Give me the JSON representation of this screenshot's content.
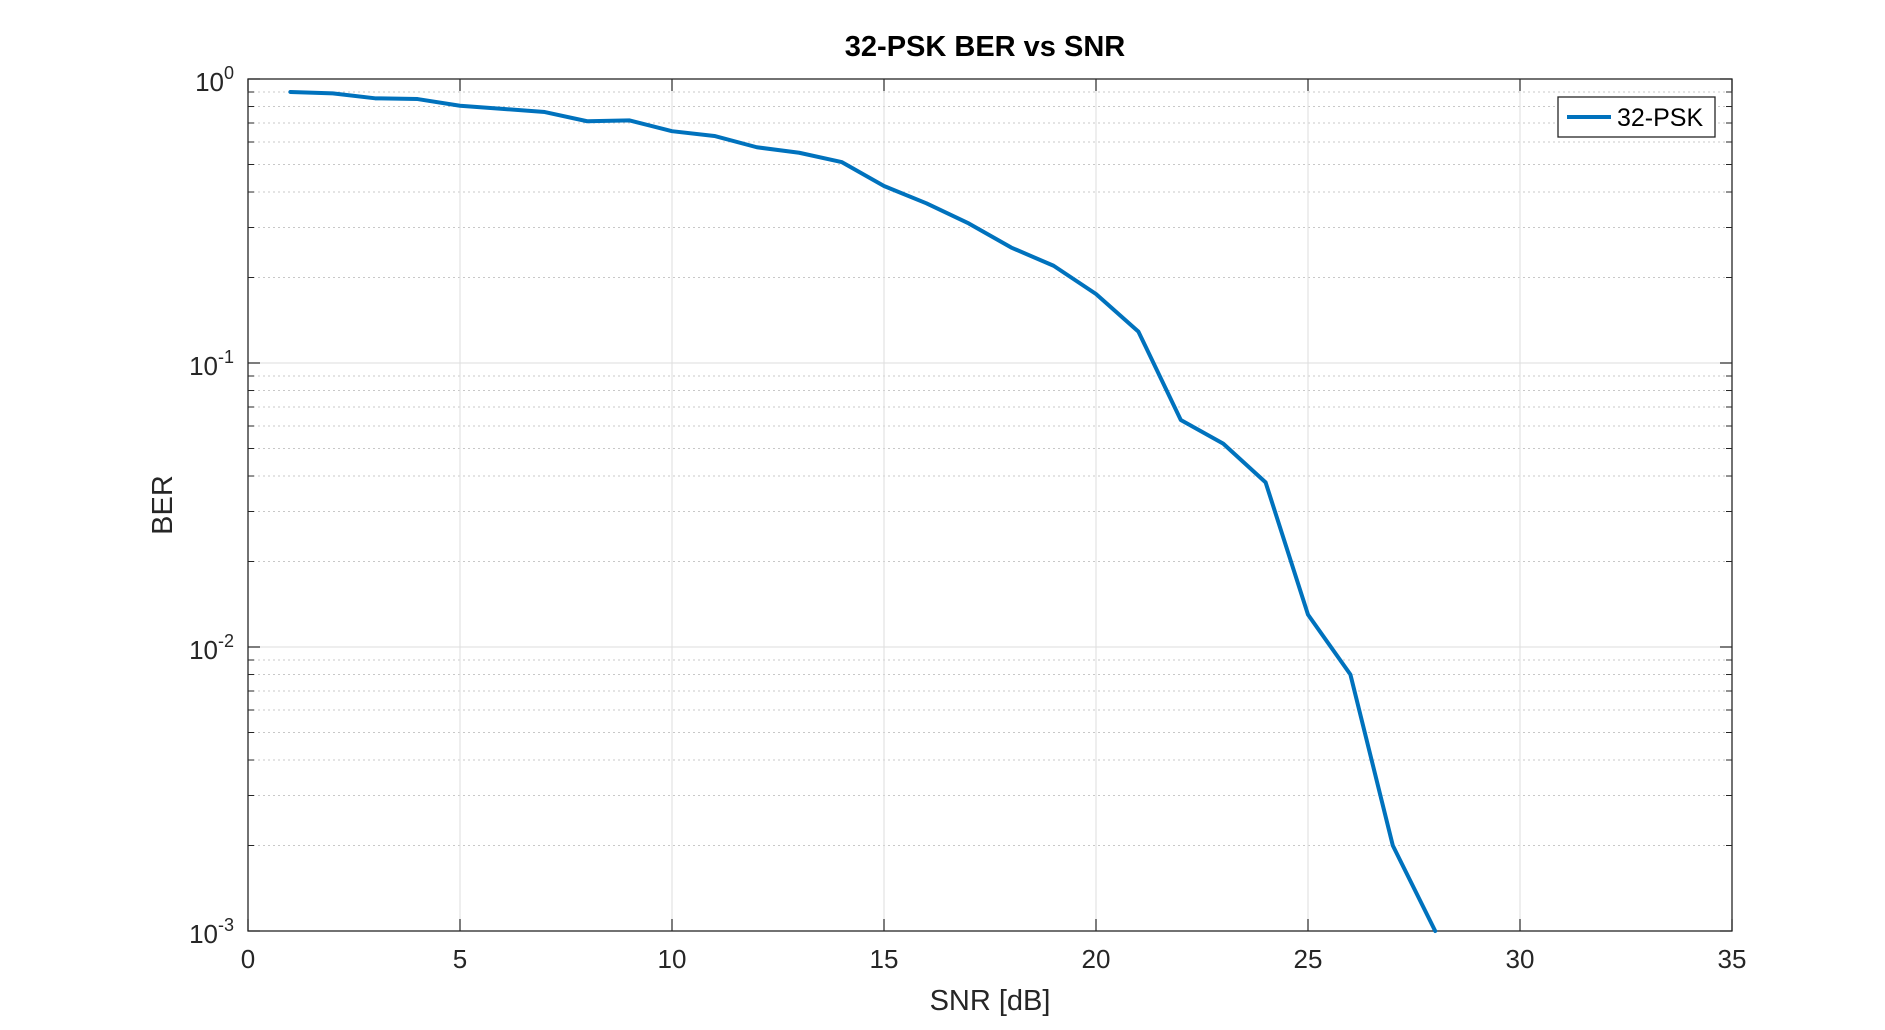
{
  "chart_data": {
    "type": "line",
    "title": "32-PSK BER vs SNR",
    "xlabel": "SNR [dB]",
    "ylabel": "BER",
    "xlim": [
      0,
      35
    ],
    "ylim": [
      0.001,
      1
    ],
    "yscale": "log",
    "grid": true,
    "legend_position": "top-right",
    "x_ticks": [
      "0",
      "5",
      "10",
      "15",
      "20",
      "25",
      "30",
      "35"
    ],
    "y_ticks": [
      {
        "base": "10",
        "exp": "0"
      },
      {
        "base": "10",
        "exp": "-1"
      },
      {
        "base": "10",
        "exp": "-2"
      },
      {
        "base": "10",
        "exp": "-3"
      }
    ],
    "series": [
      {
        "name": "32-PSK",
        "color": "#0072BD",
        "x": [
          1,
          2,
          3,
          4,
          5,
          6,
          7,
          8,
          9,
          10,
          11,
          12,
          13,
          14,
          15,
          16,
          17,
          18,
          19,
          20,
          21,
          22,
          23,
          24,
          25,
          26,
          27,
          28
        ],
        "y": [
          0.9,
          0.89,
          0.855,
          0.85,
          0.805,
          0.785,
          0.765,
          0.71,
          0.715,
          0.655,
          0.63,
          0.575,
          0.55,
          0.51,
          0.42,
          0.365,
          0.31,
          0.255,
          0.22,
          0.175,
          0.129,
          0.063,
          0.052,
          0.038,
          0.013,
          0.008,
          0.002,
          0.001
        ]
      }
    ]
  }
}
